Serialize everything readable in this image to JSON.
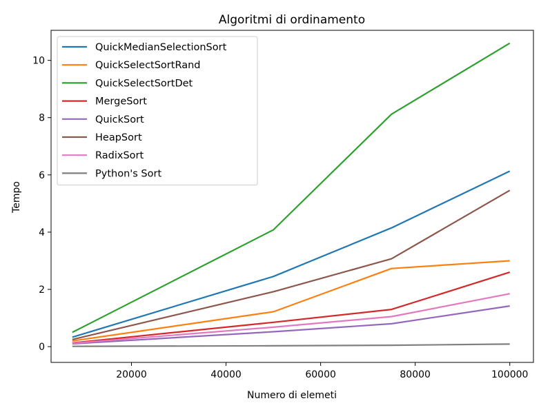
{
  "chart_data": {
    "type": "line",
    "title": "Algoritmi di ordinamento",
    "xlabel": "Numero di elemeti",
    "ylabel": "Tempo",
    "x": [
      7500,
      50000,
      75000,
      100000
    ],
    "xlim": [
      3000,
      105000
    ],
    "ylim": [
      -0.55,
      11.05
    ],
    "xticks": [
      20000,
      40000,
      60000,
      80000,
      100000
    ],
    "yticks": [
      0,
      2,
      4,
      6,
      8,
      10
    ],
    "grid": false,
    "legend_position": "top-left",
    "series": [
      {
        "name": "QuickMedianSelectionSort",
        "color": "#1f77b4",
        "values": [
          0.33,
          2.45,
          4.15,
          6.13
        ]
      },
      {
        "name": "QuickSelectSortRand",
        "color": "#ff7f0e",
        "values": [
          0.2,
          1.22,
          2.73,
          3.0
        ]
      },
      {
        "name": "QuickSelectSortDet",
        "color": "#2ca02c",
        "values": [
          0.5,
          4.08,
          8.12,
          10.6
        ]
      },
      {
        "name": "MergeSort",
        "color": "#d62728",
        "values": [
          0.13,
          0.85,
          1.3,
          2.6
        ]
      },
      {
        "name": "QuickSort",
        "color": "#9467bd",
        "values": [
          0.1,
          0.52,
          0.8,
          1.42
        ]
      },
      {
        "name": "HeapSort",
        "color": "#8c564b",
        "values": [
          0.25,
          1.92,
          3.07,
          5.46
        ]
      },
      {
        "name": "RadixSort",
        "color": "#e377c2",
        "values": [
          0.12,
          0.68,
          1.05,
          1.85
        ]
      },
      {
        "name": "Python's Sort",
        "color": "#7f7f7f",
        "values": [
          0.01,
          0.03,
          0.05,
          0.09
        ]
      }
    ]
  }
}
